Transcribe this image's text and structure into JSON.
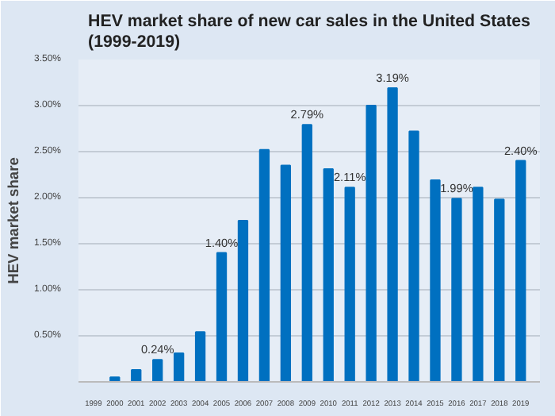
{
  "chart_data": {
    "type": "bar",
    "title": "HEV market share of new car sales in the United States\n(1999-2019)",
    "ylabel": "HEV market share",
    "categories": [
      "1999",
      "2000",
      "2001",
      "2002",
      "2003",
      "2004",
      "2005",
      "2006",
      "2007",
      "2008",
      "2009",
      "2010",
      "2011",
      "2012",
      "2013",
      "2014",
      "2015",
      "2016",
      "2017",
      "2018",
      "2019"
    ],
    "values": [
      0.0,
      0.05,
      0.13,
      0.24,
      0.31,
      0.54,
      1.4,
      1.75,
      2.52,
      2.35,
      2.79,
      2.31,
      2.11,
      3.0,
      3.19,
      2.72,
      2.19,
      1.99,
      2.11,
      1.98,
      2.4
    ],
    "value_labels": [
      null,
      null,
      null,
      "0.24%",
      null,
      null,
      "1.40%",
      null,
      null,
      null,
      "2.79%",
      null,
      "2.11%",
      null,
      "3.19%",
      null,
      null,
      "1.99%",
      null,
      null,
      "2.40%"
    ],
    "color": "#0070c0",
    "ylim": [
      0,
      3.5
    ],
    "yticks": [
      {
        "value": 0,
        "label": null
      },
      {
        "value": 0.5,
        "label": "0.50%"
      },
      {
        "value": 1.0,
        "label": "1.00%"
      },
      {
        "value": 1.5,
        "label": "1.50%"
      },
      {
        "value": 2.0,
        "label": "2.00%"
      },
      {
        "value": 2.5,
        "label": "2.50%"
      },
      {
        "value": 3.0,
        "label": "3.00%"
      },
      {
        "value": 3.5,
        "label": "3.50%"
      }
    ],
    "grid": "y"
  }
}
